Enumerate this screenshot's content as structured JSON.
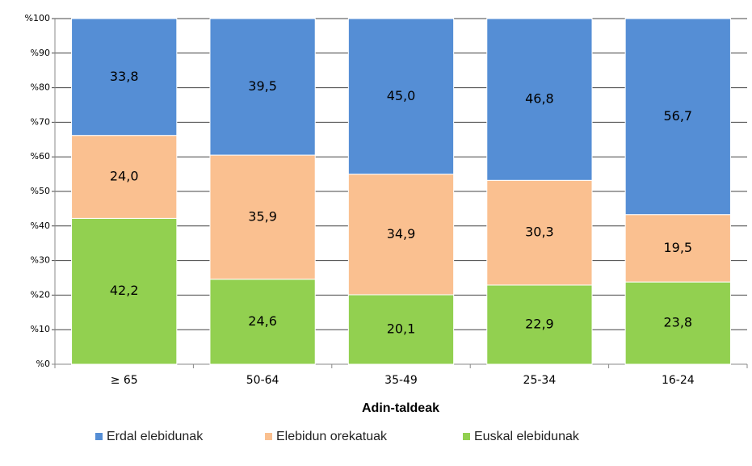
{
  "chart_data": {
    "type": "stacked_bar",
    "xlabel": "Adin-taldeak",
    "categories": [
      "≥ 65",
      "50-64",
      "35-49",
      "25-34",
      "16-24"
    ],
    "series": [
      {
        "name": "Erdal elebidunak",
        "color": "#558ed5",
        "values": [
          33.8,
          39.5,
          45.0,
          46.8,
          56.7
        ],
        "value_labels": [
          "33,8",
          "39,5",
          "45,0",
          "46,8",
          "56,7"
        ]
      },
      {
        "name": "Elebidun orekatuak",
        "color": "#fac090",
        "values": [
          24.0,
          35.9,
          34.9,
          30.3,
          19.5
        ],
        "value_labels": [
          "24,0",
          "35,9",
          "34,9",
          "30,3",
          "19,5"
        ]
      },
      {
        "name": "Euskal elebidunak",
        "color": "#92d050",
        "values": [
          42.2,
          24.6,
          20.1,
          22.9,
          23.8
        ],
        "value_labels": [
          "42,2",
          "24,6",
          "20,1",
          "22,9",
          "23,8"
        ]
      }
    ],
    "ylim": [
      0,
      100
    ],
    "yticks": [
      {
        "value": 0,
        "label": "%0"
      },
      {
        "value": 10,
        "label": "%10"
      },
      {
        "value": 20,
        "label": "%20"
      },
      {
        "value": 30,
        "label": "%30"
      },
      {
        "value": 40,
        "label": "%40"
      },
      {
        "value": 50,
        "label": "%50"
      },
      {
        "value": 60,
        "label": "%60"
      },
      {
        "value": 70,
        "label": "%70"
      },
      {
        "value": 80,
        "label": "%80"
      },
      {
        "value": 90,
        "label": "%90"
      },
      {
        "value": 100,
        "label": "%100"
      }
    ],
    "grid": true,
    "legend": "bottom"
  }
}
